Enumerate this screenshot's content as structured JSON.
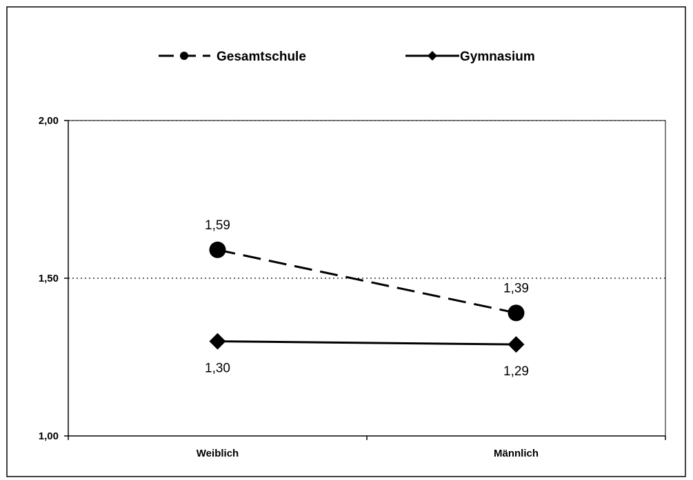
{
  "chart_data": {
    "type": "line",
    "categories": [
      "Weiblich",
      "Männlich"
    ],
    "series": [
      {
        "name": "Gesamtschule",
        "values": [
          1.59,
          1.39
        ],
        "labels": [
          "1,59",
          "1,39"
        ],
        "style": "dashed",
        "marker": "circle",
        "color": "#000000"
      },
      {
        "name": "Gymnasium",
        "values": [
          1.3,
          1.29
        ],
        "labels": [
          "1,30",
          "1,29"
        ],
        "style": "solid",
        "marker": "diamond",
        "color": "#000000"
      }
    ],
    "yticks": [
      1.0,
      1.5,
      2.0
    ],
    "ytick_labels": [
      "1,00",
      "1,50",
      "2,00"
    ],
    "ylim": [
      1.0,
      2.0
    ],
    "grid": "dotted horizontal at 1,50 and 2,00",
    "legend": "top"
  }
}
